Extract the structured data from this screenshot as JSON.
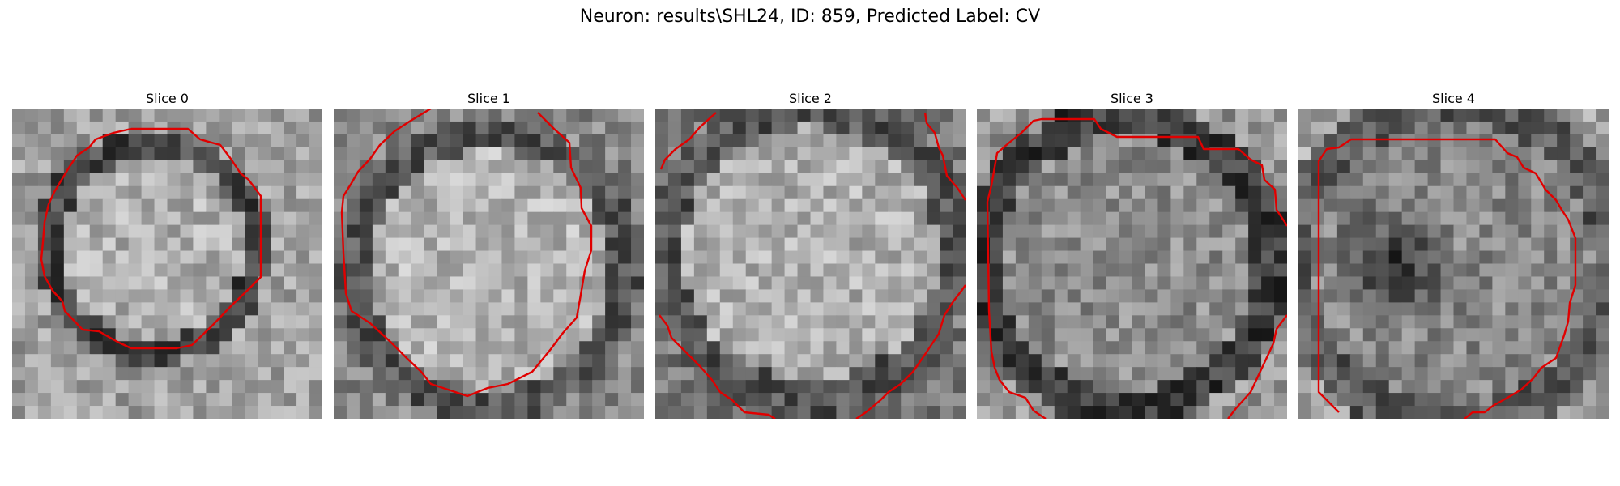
{
  "figure": {
    "title": "Neuron: results\\SHL24, ID: 859, Predicted Label: CV",
    "contour_color": "#e00000",
    "colormap": "grayscale"
  },
  "panels": [
    {
      "title": "Slice 0"
    },
    {
      "title": "Slice 1"
    },
    {
      "title": "Slice 2"
    },
    {
      "title": "Slice 3"
    },
    {
      "title": "Slice 4"
    }
  ]
}
